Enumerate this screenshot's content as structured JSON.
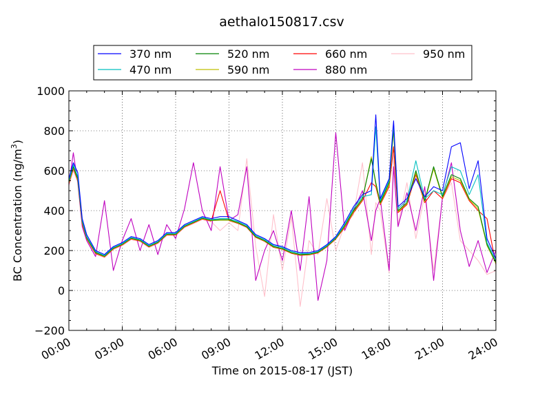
{
  "chart_data": {
    "type": "line",
    "title": "aethalo150817.csv",
    "xlabel": "Time on 2015-08-17 (JST)",
    "ylabel": "BC Concentration (ng/m",
    "ylabel_superscript": "3",
    "ylabel_suffix": ")",
    "xlim": [
      0,
      24
    ],
    "ylim": [
      -200,
      1000
    ],
    "x_ticks": [
      0,
      3,
      6,
      9,
      12,
      15,
      18,
      21,
      24
    ],
    "x_tick_labels": [
      "00:00",
      "03:00",
      "06:00",
      "09:00",
      "12:00",
      "15:00",
      "18:00",
      "21:00",
      "24:00"
    ],
    "y_ticks": [
      -200,
      0,
      200,
      400,
      600,
      800,
      1000
    ],
    "y_tick_labels": [
      "−200",
      "0",
      "200",
      "400",
      "600",
      "800",
      "1000"
    ],
    "grid": true,
    "legend_position": "top",
    "x": [
      0.0,
      0.25,
      0.5,
      0.75,
      1.0,
      1.5,
      2.0,
      2.5,
      3.0,
      3.5,
      4.0,
      4.5,
      5.0,
      5.5,
      6.0,
      6.5,
      7.0,
      7.5,
      8.0,
      8.5,
      9.0,
      9.5,
      10.0,
      10.5,
      11.0,
      11.5,
      12.0,
      12.5,
      13.0,
      13.5,
      14.0,
      14.5,
      15.0,
      15.5,
      16.0,
      16.5,
      17.0,
      17.25,
      17.5,
      18.0,
      18.25,
      18.5,
      19.0,
      19.5,
      20.0,
      20.5,
      21.0,
      21.5,
      22.0,
      22.5,
      23.0,
      23.5,
      24.0
    ],
    "series": [
      {
        "name": "370 nm",
        "color": "#0000ff",
        "values": [
          560,
          640,
          590,
          360,
          280,
          200,
          180,
          220,
          240,
          270,
          260,
          230,
          250,
          290,
          290,
          330,
          350,
          370,
          360,
          370,
          370,
          350,
          330,
          280,
          260,
          230,
          220,
          200,
          190,
          190,
          200,
          230,
          270,
          340,
          420,
          480,
          500,
          880,
          460,
          560,
          850,
          420,
          460,
          560,
          470,
          520,
          500,
          720,
          740,
          510,
          650,
          260,
          160
        ]
      },
      {
        "name": "470 nm",
        "color": "#00bfbf",
        "values": [
          550,
          630,
          570,
          350,
          270,
          195,
          175,
          215,
          235,
          265,
          255,
          225,
          245,
          285,
          285,
          325,
          345,
          365,
          355,
          360,
          360,
          345,
          325,
          275,
          255,
          225,
          215,
          195,
          185,
          185,
          195,
          225,
          265,
          330,
          410,
          470,
          480,
          820,
          450,
          550,
          830,
          410,
          450,
          650,
          460,
          500,
          480,
          620,
          600,
          480,
          580,
          240,
          150
        ]
      },
      {
        "name": "520 nm",
        "color": "#008000",
        "values": [
          545,
          620,
          560,
          345,
          265,
          190,
          172,
          212,
          232,
          262,
          252,
          222,
          242,
          282,
          282,
          322,
          342,
          362,
          352,
          355,
          355,
          340,
          320,
          270,
          250,
          220,
          210,
          190,
          180,
          182,
          192,
          222,
          262,
          325,
          400,
          460,
          660,
          540,
          440,
          540,
          810,
          400,
          440,
          600,
          450,
          620,
          470,
          580,
          560,
          460,
          420,
          230,
          140
        ]
      },
      {
        "name": "590 nm",
        "color": "#bfbf00",
        "values": [
          540,
          615,
          555,
          340,
          262,
          188,
          170,
          210,
          230,
          260,
          250,
          220,
          240,
          280,
          280,
          320,
          340,
          360,
          350,
          352,
          352,
          338,
          318,
          268,
          248,
          218,
          208,
          188,
          178,
          180,
          190,
          220,
          260,
          320,
          395,
          455,
          670,
          530,
          435,
          530,
          800,
          395,
          435,
          590,
          445,
          610,
          465,
          570,
          550,
          455,
          410,
          225,
          135
        ]
      },
      {
        "name": "660 nm",
        "color": "#ff0000",
        "values": [
          535,
          610,
          550,
          335,
          260,
          185,
          168,
          208,
          228,
          258,
          248,
          218,
          238,
          278,
          278,
          318,
          338,
          358,
          348,
          500,
          350,
          336,
          316,
          266,
          246,
          216,
          206,
          186,
          176,
          178,
          188,
          218,
          258,
          315,
          390,
          450,
          540,
          520,
          430,
          520,
          720,
          390,
          430,
          580,
          440,
          500,
          460,
          560,
          540,
          450,
          400,
          360,
          130
        ]
      },
      {
        "name": "880 nm",
        "color": "#bf00bf",
        "values": [
          530,
          690,
          540,
          320,
          250,
          170,
          450,
          100,
          250,
          360,
          200,
          330,
          180,
          330,
          260,
          410,
          640,
          400,
          300,
          620,
          350,
          380,
          620,
          50,
          200,
          300,
          150,
          400,
          100,
          470,
          -50,
          150,
          790,
          300,
          400,
          500,
          250,
          400,
          460,
          100,
          620,
          320,
          490,
          300,
          520,
          50,
          470,
          640,
          300,
          120,
          250,
          90,
          200
        ]
      },
      {
        "name": "950 nm",
        "color": "#ffc0cb",
        "values": [
          525,
          600,
          545,
          330,
          255,
          182,
          165,
          205,
          225,
          255,
          245,
          215,
          235,
          275,
          275,
          315,
          335,
          355,
          345,
          300,
          340,
          300,
          660,
          220,
          -30,
          380,
          100,
          370,
          -80,
          250,
          180,
          460,
          200,
          330,
          380,
          640,
          180,
          440,
          400,
          90,
          680,
          330,
          540,
          260,
          480,
          100,
          460,
          540,
          250,
          200,
          150,
          80,
          100
        ]
      }
    ]
  }
}
